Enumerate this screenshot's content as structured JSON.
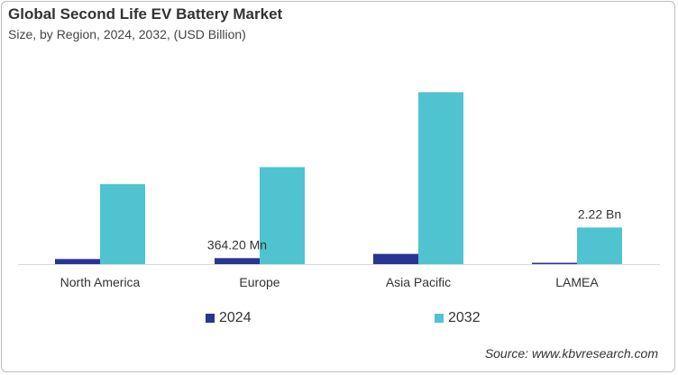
{
  "title": "Global Second Life EV Battery Market",
  "subtitle": "Size, by Region, 2024, 2032, (USD Billion)",
  "source": "Source: www.kbvresearch.com",
  "colors": {
    "2024": "#283593",
    "2032": "#4fc3cf"
  },
  "chart_data": {
    "type": "bar",
    "categories": [
      "North America",
      "Europe",
      "Asia Pacific",
      "LAMEA"
    ],
    "series": [
      {
        "name": "2024",
        "values": [
          0.31,
          0.3642,
          0.62,
          0.04
        ]
      },
      {
        "name": "2032",
        "values": [
          4.85,
          5.88,
          10.42,
          2.22
        ]
      }
    ],
    "data_labels": [
      {
        "series": "2024",
        "category": "Europe",
        "text": "364.20 Mn"
      },
      {
        "series": "2032",
        "category": "LAMEA",
        "text": "2.22 Bn"
      }
    ],
    "ylim": [
      0,
      11
    ],
    "grid": false,
    "legend": "bottom",
    "unit": "USD Billion"
  }
}
